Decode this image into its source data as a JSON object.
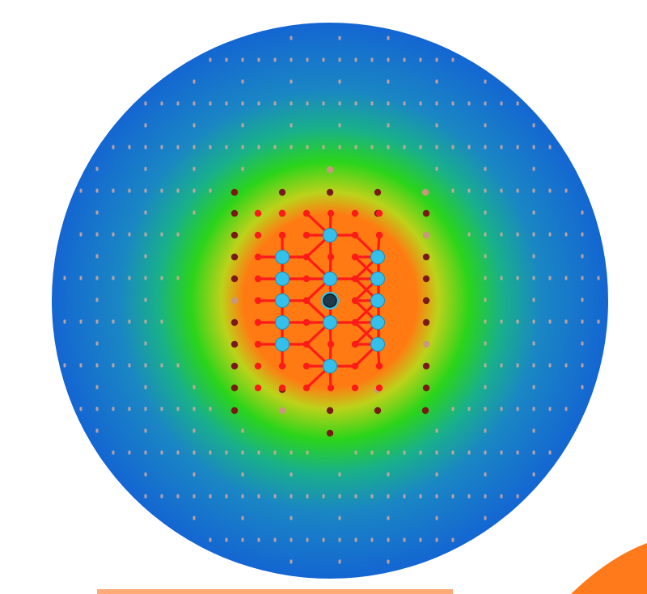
{
  "diagram": {
    "colors": {
      "background": "#ffffff",
      "outer_region": "#1466d2",
      "gradient_mid_blue": "#1a86c4",
      "gradient_teal": "#19b08a",
      "gradient_green": "#2bd41a",
      "gradient_yellow_green": "#bcd21a",
      "inner_region": "#ff7a12",
      "lattice_points": "#d9a89c",
      "boundary_atoms": "#7a1a14",
      "boundary_atoms_light": "#c8987e",
      "oxygen_atoms": "#ff1a1a",
      "metal_atoms": "#34c0ea",
      "central_atom": "#1e3a4a",
      "corner_accent": "#ff7a1a",
      "bottom_strip": "#ffab78"
    },
    "atom_types": [
      "outer-lattice-point",
      "boundary-atom",
      "oxygen-atom",
      "metal-atom",
      "central-atom"
    ],
    "shell_count": 2
  }
}
